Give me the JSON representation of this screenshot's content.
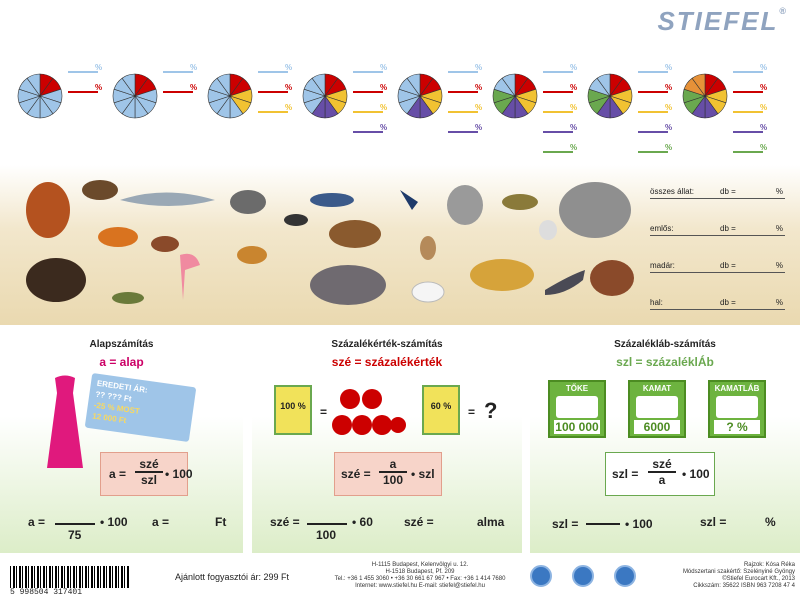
{
  "brand": {
    "name": "STIEFEL",
    "mark": "®"
  },
  "pies": {
    "pct": "%",
    "colors": {
      "blue": "#9fc5e8",
      "red": "#cc0000",
      "yellow": "#f1c232",
      "purple": "#674ea7",
      "green": "#6aa84f",
      "orange": "#e69138"
    }
  },
  "stats": {
    "rows": [
      {
        "label": "összes állat:",
        "db": "db =",
        "pct": "%"
      },
      {
        "label": "emlős:",
        "db": "db =",
        "pct": "%"
      },
      {
        "label": "madár:",
        "db": "db =",
        "pct": "%"
      },
      {
        "label": "hal:",
        "db": "db =",
        "pct": "%"
      }
    ]
  },
  "panel1": {
    "title": "Alapszámítás",
    "subtitle": "a = alap",
    "tag": {
      "line1": "EREDETI ÁR:",
      "line2": "?? ??? Ft",
      "line3": "-25 % MOST",
      "line4": "12 000 Ft"
    },
    "formula": {
      "lhs": "a =",
      "num": "szé",
      "den": "szl",
      "rhs": "• 100"
    },
    "bottom": {
      "lhs": "a =",
      "den": "75",
      "mid": "• 100",
      "lhs2": "a =",
      "unit": "Ft"
    }
  },
  "panel2": {
    "title": "Százalékérték-számítás",
    "subtitle": "szé = százalékérték",
    "box1": "100 %",
    "eq": "=",
    "box2": "60 %",
    "eq2": "=",
    "q": "?",
    "formula": {
      "lhs": "szé =",
      "num": "a",
      "den": "100",
      "rhs": "• szl"
    },
    "bottom": {
      "lhs": "szé =",
      "den": "100",
      "mid": "• 60",
      "lhs2": "szé =",
      "unit": "alma"
    }
  },
  "panel3": {
    "title": "Százalékláb-számítás",
    "subtitle": "szl = százaléklÁb",
    "boxes": [
      {
        "label": "TŐKE",
        "value": "100 000"
      },
      {
        "label": "KAMAT",
        "value": "6000"
      },
      {
        "label": "KAMATLÁB",
        "value": "? %"
      }
    ],
    "formula": {
      "lhs": "szl =",
      "num": "szé",
      "den": "a",
      "rhs": "• 100"
    },
    "bottom": {
      "lhs": "szl =",
      "mid": "• 100",
      "lhs2": "szl =",
      "unit": "%"
    }
  },
  "footer": {
    "barcode": "5 998504 317401",
    "price": "Ajánlott fogyasztói ár: 299 Ft",
    "addr1": "H-1115 Budapest, Kelenvölgyi u. 12.",
    "addr2": "H-1518 Budapest, Pf. 209",
    "addr3": "Tel.: +36 1 455 3060 • +36 30 661 67 967 • Fax: +36 1 414 7680",
    "addr4": "Internet: www.stiefel.hu  E-mail: stiefel@stiefel.hu",
    "credit1": "Rajzok: Kósa Réka",
    "credit2": "Módszertani szakértő: Szelényiné Gyöngy",
    "credit3": "©Stiefel Eurocart Kft., 2013",
    "credit4": "Cikkszám: 35622    ISBN 963 7208 47 4"
  }
}
